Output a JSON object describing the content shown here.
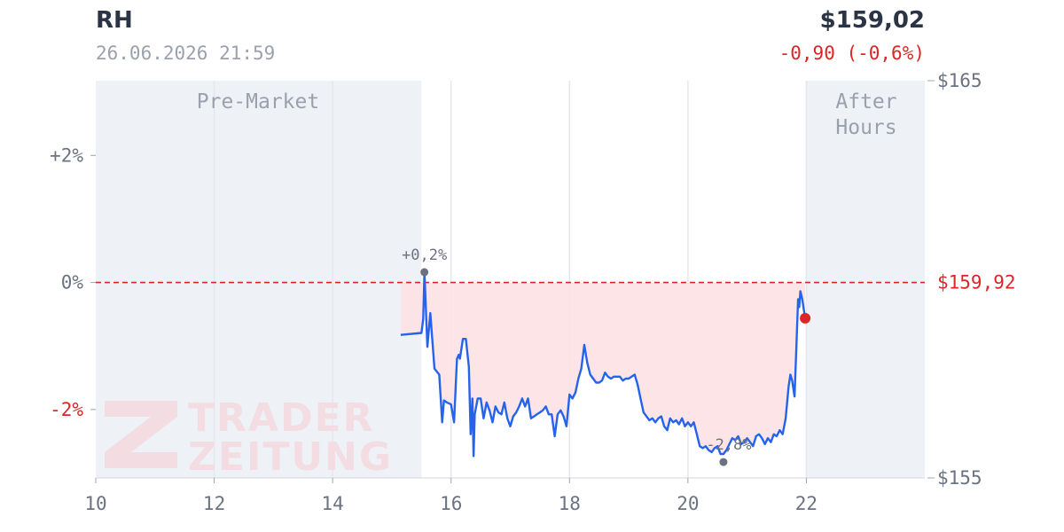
{
  "header": {
    "ticker": "RH",
    "datetime": "26.06.2026 21:59",
    "price": "$159,02",
    "change": "-0,90 (-0,6%)"
  },
  "colors": {
    "line": "#2563eb",
    "negative": "#dc2626",
    "fill_negative": "#fde2e4",
    "session_bg": "#eef1f6",
    "grid": "#e5e7eb",
    "text": "#6b7280",
    "watermark": "#f3dde2"
  },
  "watermark": {
    "line1": "TRADER",
    "line2": "ZEITUNG"
  },
  "sessions": {
    "pre_market": {
      "label": "Pre-Market",
      "start": 10,
      "end": 15.5
    },
    "after_hours": {
      "label_line1": "After",
      "label_line2": "Hours",
      "start": 22,
      "end": 24
    }
  },
  "chart_data": {
    "type": "line",
    "title": "",
    "x_unit": "hour",
    "xlim": [
      10,
      24
    ],
    "x_ticks": [
      10,
      12,
      14,
      16,
      18,
      20,
      22
    ],
    "x_tick_labels": [
      "10",
      "12",
      "14",
      "16",
      "18",
      "20",
      "22"
    ],
    "y_left_ticks": [
      2,
      0,
      -2
    ],
    "y_left_tick_labels": [
      "+2%",
      "0%",
      "-2%"
    ],
    "y_right_ticks": [
      165,
      155
    ],
    "y_right_tick_labels": [
      "$165",
      "$155"
    ],
    "ylim_price": [
      155,
      165
    ],
    "reference_price": 159.92,
    "reference_label": "$159,92",
    "current_point": {
      "x": 21.98,
      "y": 159.02
    },
    "max_annotation": {
      "x": 15.55,
      "y": 160.18,
      "label": "+0,2%"
    },
    "min_annotation": {
      "x": 20.6,
      "y": 155.4,
      "label": "-2,8%"
    },
    "series": [
      {
        "x": [
          15.15,
          15.5,
          15.53,
          15.55,
          15.6,
          15.65,
          15.72,
          15.8,
          15.85,
          15.88,
          15.93,
          16.0,
          16.05,
          16.1,
          16.13,
          16.15,
          16.2,
          16.25,
          16.3,
          16.33,
          16.36,
          16.38,
          16.4,
          16.45,
          16.5,
          16.55,
          16.6,
          16.65,
          16.7,
          16.75,
          16.8,
          16.85,
          16.9,
          16.95,
          17.0,
          17.05,
          17.1,
          17.15,
          17.2,
          17.25,
          17.3,
          17.35,
          17.4,
          17.45,
          17.5,
          17.55,
          17.6,
          17.65,
          17.7,
          17.75,
          17.8,
          17.85,
          17.9,
          17.95,
          18.0,
          18.05,
          18.1,
          18.15,
          18.2,
          18.25,
          18.3,
          18.35,
          18.4,
          18.45,
          18.5,
          18.55,
          18.6,
          18.65,
          18.7,
          18.75,
          18.8,
          18.85,
          18.9,
          18.95,
          19.0,
          19.05,
          19.1,
          19.15,
          19.2,
          19.25,
          19.3,
          19.35,
          19.4,
          19.45,
          19.5,
          19.55,
          19.6,
          19.65,
          19.7,
          19.75,
          19.8,
          19.85,
          19.9,
          19.95,
          20.0,
          20.05,
          20.1,
          20.15,
          20.2,
          20.25,
          20.3,
          20.35,
          20.4,
          20.45,
          20.5,
          20.55,
          20.6,
          20.65,
          20.7,
          20.75,
          20.8,
          20.85,
          20.9,
          20.95,
          21.0,
          21.05,
          21.1,
          21.15,
          21.2,
          21.25,
          21.3,
          21.35,
          21.4,
          21.45,
          21.5,
          21.55,
          21.6,
          21.65,
          21.7,
          21.73,
          21.76,
          21.8,
          21.83,
          21.86,
          21.88,
          21.9,
          21.93,
          21.96,
          21.98
        ],
        "y": [
          158.6,
          158.65,
          159.0,
          160.18,
          158.3,
          159.15,
          157.75,
          157.6,
          156.4,
          156.95,
          156.9,
          156.85,
          156.4,
          158.0,
          158.1,
          158.0,
          158.5,
          158.5,
          157.8,
          156.1,
          157.0,
          155.55,
          156.6,
          157.0,
          157.0,
          156.5,
          156.9,
          156.7,
          156.4,
          156.8,
          156.65,
          156.6,
          156.9,
          156.5,
          156.3,
          156.55,
          156.65,
          156.8,
          157.0,
          156.8,
          157.0,
          156.5,
          156.55,
          156.6,
          156.65,
          156.7,
          156.8,
          156.6,
          156.6,
          156.05,
          156.6,
          156.7,
          156.55,
          156.3,
          157.1,
          157.0,
          157.15,
          157.5,
          157.75,
          158.35,
          157.9,
          157.6,
          157.5,
          157.4,
          157.4,
          157.45,
          157.65,
          157.55,
          157.5,
          157.55,
          157.55,
          157.55,
          157.45,
          157.5,
          157.5,
          157.55,
          157.6,
          157.35,
          157.0,
          156.65,
          156.55,
          156.45,
          156.5,
          156.4,
          156.5,
          156.55,
          156.3,
          156.2,
          156.5,
          156.4,
          156.45,
          156.35,
          156.5,
          156.3,
          156.4,
          156.3,
          156.4,
          156.1,
          155.8,
          155.75,
          155.8,
          155.7,
          155.65,
          155.75,
          155.8,
          155.6,
          155.6,
          155.7,
          155.85,
          156.0,
          155.95,
          156.05,
          155.85,
          155.9,
          156.0,
          155.9,
          155.8,
          156.05,
          156.1,
          156.0,
          155.85,
          156.0,
          155.9,
          156.1,
          156.05,
          156.2,
          156.1,
          156.5,
          157.3,
          157.6,
          157.45,
          157.05,
          158.25,
          159.5,
          159.3,
          159.7,
          159.5,
          159.2,
          159.02
        ]
      }
    ]
  }
}
